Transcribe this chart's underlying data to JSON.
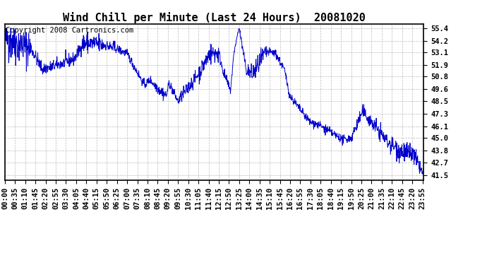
{
  "title": "Wind Chill per Minute (Last 24 Hours)  20081020",
  "copyright_text": "Copyright 2008 Cartronics.com",
  "line_color": "#0000cc",
  "bg_color": "#ffffff",
  "plot_bg_color": "#ffffff",
  "grid_color": "#aaaaaa",
  "yticks": [
    41.5,
    42.7,
    43.8,
    45.0,
    46.1,
    47.3,
    48.5,
    49.6,
    50.8,
    51.9,
    53.1,
    54.2,
    55.4
  ],
  "ylim": [
    41.0,
    55.8
  ],
  "total_minutes": 1440,
  "title_fontsize": 11,
  "tick_fontsize": 7.5,
  "copyright_fontsize": 7.5,
  "linewidth": 0.7
}
